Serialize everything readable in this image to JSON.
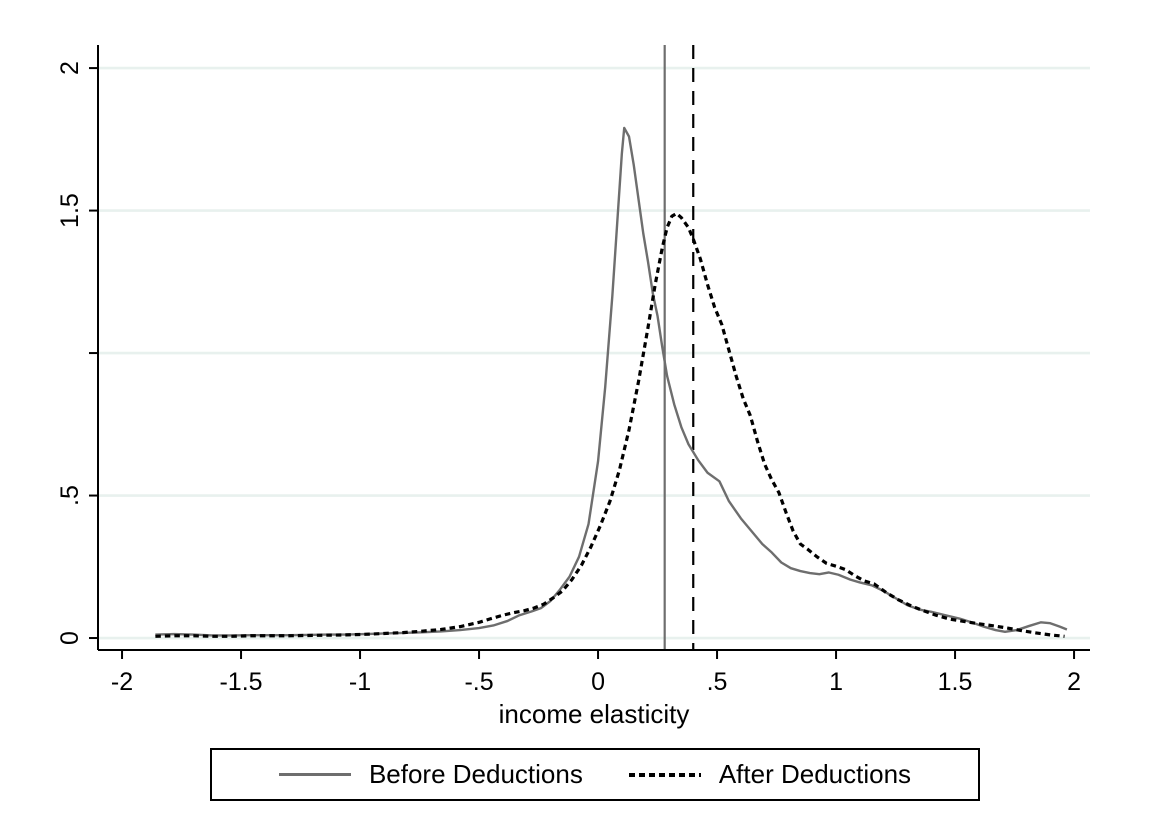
{
  "colors": {
    "background": "#ffffff",
    "axis": "#000000",
    "grid": "#e8f1ee",
    "before_line": "#6e6e6e",
    "after_line": "#000000"
  },
  "chart_data": {
    "type": "line",
    "title": "",
    "xlabel": "income elasticity",
    "ylabel": "",
    "xlim": [
      -2.101,
      2.067
    ],
    "ylim": [
      -0.042,
      2.081
    ],
    "grid": true,
    "grid_color": "#e8f1ee",
    "legend_position": "bottom",
    "x_ticks": [
      {
        "value": -2,
        "label": "-2"
      },
      {
        "value": -1.5,
        "label": "-1.5"
      },
      {
        "value": -1,
        "label": "-1"
      },
      {
        "value": -0.5,
        "label": "-.5"
      },
      {
        "value": 0,
        "label": "0"
      },
      {
        "value": 0.5,
        "label": ".5"
      },
      {
        "value": 1,
        "label": "1"
      },
      {
        "value": 1.5,
        "label": "1.5"
      },
      {
        "value": 2,
        "label": "2"
      }
    ],
    "y_ticks": [
      {
        "value": 0,
        "label": "0"
      },
      {
        "value": 0.5,
        "label": ".5"
      },
      {
        "value": 1,
        "label": ""
      },
      {
        "value": 1.5,
        "label": "1.5"
      },
      {
        "value": 2,
        "label": "2"
      }
    ],
    "reference_lines": [
      {
        "axis": "x",
        "value": 0.28,
        "style": "solid",
        "color": "#6e6e6e",
        "width": 2.2
      },
      {
        "axis": "x",
        "value": 0.4,
        "style": "dashed",
        "color": "#000000",
        "width": 2.2
      }
    ],
    "series": [
      {
        "name": "Before Deductions",
        "style": "solid",
        "color": "#6e6e6e",
        "width": 2.4,
        "points": [
          [
            -1.86,
            0.012
          ],
          [
            -1.78,
            0.014
          ],
          [
            -1.7,
            0.012
          ],
          [
            -1.62,
            0.009
          ],
          [
            -1.54,
            0.009
          ],
          [
            -1.46,
            0.01
          ],
          [
            -1.38,
            0.01
          ],
          [
            -1.3,
            0.01
          ],
          [
            -1.22,
            0.011
          ],
          [
            -1.14,
            0.012
          ],
          [
            -1.06,
            0.012
          ],
          [
            -0.98,
            0.014
          ],
          [
            -0.9,
            0.016
          ],
          [
            -0.82,
            0.018
          ],
          [
            -0.74,
            0.02
          ],
          [
            -0.66,
            0.023
          ],
          [
            -0.58,
            0.028
          ],
          [
            -0.5,
            0.035
          ],
          [
            -0.44,
            0.044
          ],
          [
            -0.38,
            0.06
          ],
          [
            -0.33,
            0.08
          ],
          [
            -0.28,
            0.093
          ],
          [
            -0.24,
            0.105
          ],
          [
            -0.2,
            0.13
          ],
          [
            -0.16,
            0.17
          ],
          [
            -0.12,
            0.215
          ],
          [
            -0.08,
            0.285
          ],
          [
            -0.04,
            0.4
          ],
          [
            0.0,
            0.62
          ],
          [
            0.03,
            0.88
          ],
          [
            0.06,
            1.2
          ],
          [
            0.08,
            1.45
          ],
          [
            0.1,
            1.7
          ],
          [
            0.11,
            1.79
          ],
          [
            0.13,
            1.76
          ],
          [
            0.15,
            1.66
          ],
          [
            0.17,
            1.54
          ],
          [
            0.19,
            1.42
          ],
          [
            0.21,
            1.32
          ],
          [
            0.23,
            1.21
          ],
          [
            0.25,
            1.13
          ],
          [
            0.27,
            1.02
          ],
          [
            0.29,
            0.92
          ],
          [
            0.32,
            0.82
          ],
          [
            0.35,
            0.74
          ],
          [
            0.38,
            0.68
          ],
          [
            0.42,
            0.625
          ],
          [
            0.46,
            0.58
          ],
          [
            0.51,
            0.55
          ],
          [
            0.55,
            0.48
          ],
          [
            0.6,
            0.42
          ],
          [
            0.64,
            0.38
          ],
          [
            0.69,
            0.33
          ],
          [
            0.73,
            0.3
          ],
          [
            0.77,
            0.265
          ],
          [
            0.81,
            0.245
          ],
          [
            0.85,
            0.235
          ],
          [
            0.89,
            0.228
          ],
          [
            0.93,
            0.224
          ],
          [
            0.97,
            0.23
          ],
          [
            1.01,
            0.222
          ],
          [
            1.06,
            0.205
          ],
          [
            1.1,
            0.195
          ],
          [
            1.15,
            0.185
          ],
          [
            1.2,
            0.165
          ],
          [
            1.25,
            0.14
          ],
          [
            1.3,
            0.115
          ],
          [
            1.35,
            0.1
          ],
          [
            1.4,
            0.092
          ],
          [
            1.46,
            0.08
          ],
          [
            1.52,
            0.068
          ],
          [
            1.57,
            0.055
          ],
          [
            1.62,
            0.04
          ],
          [
            1.67,
            0.028
          ],
          [
            1.71,
            0.022
          ],
          [
            1.76,
            0.028
          ],
          [
            1.81,
            0.042
          ],
          [
            1.86,
            0.055
          ],
          [
            1.9,
            0.052
          ],
          [
            1.94,
            0.04
          ],
          [
            1.97,
            0.03
          ]
        ]
      },
      {
        "name": "After Deductions",
        "style": "dotted",
        "color": "#000000",
        "width": 3.2,
        "points": [
          [
            -1.86,
            0.006
          ],
          [
            -1.78,
            0.008
          ],
          [
            -1.7,
            0.008
          ],
          [
            -1.62,
            0.006
          ],
          [
            -1.54,
            0.006
          ],
          [
            -1.46,
            0.008
          ],
          [
            -1.38,
            0.008
          ],
          [
            -1.3,
            0.008
          ],
          [
            -1.22,
            0.009
          ],
          [
            -1.14,
            0.01
          ],
          [
            -1.06,
            0.011
          ],
          [
            -0.98,
            0.013
          ],
          [
            -0.9,
            0.016
          ],
          [
            -0.82,
            0.019
          ],
          [
            -0.74,
            0.024
          ],
          [
            -0.66,
            0.03
          ],
          [
            -0.58,
            0.04
          ],
          [
            -0.5,
            0.055
          ],
          [
            -0.45,
            0.068
          ],
          [
            -0.4,
            0.08
          ],
          [
            -0.36,
            0.088
          ],
          [
            -0.31,
            0.096
          ],
          [
            -0.27,
            0.105
          ],
          [
            -0.23,
            0.118
          ],
          [
            -0.19,
            0.14
          ],
          [
            -0.15,
            0.165
          ],
          [
            -0.11,
            0.205
          ],
          [
            -0.07,
            0.255
          ],
          [
            -0.03,
            0.32
          ],
          [
            0.01,
            0.395
          ],
          [
            0.05,
            0.48
          ],
          [
            0.09,
            0.59
          ],
          [
            0.13,
            0.73
          ],
          [
            0.17,
            0.9
          ],
          [
            0.21,
            1.09
          ],
          [
            0.24,
            1.24
          ],
          [
            0.27,
            1.37
          ],
          [
            0.29,
            1.44
          ],
          [
            0.31,
            1.48
          ],
          [
            0.33,
            1.49
          ],
          [
            0.35,
            1.475
          ],
          [
            0.38,
            1.44
          ],
          [
            0.4,
            1.4
          ],
          [
            0.43,
            1.33
          ],
          [
            0.46,
            1.24
          ],
          [
            0.49,
            1.16
          ],
          [
            0.52,
            1.1
          ],
          [
            0.55,
            1.01
          ],
          [
            0.58,
            0.92
          ],
          [
            0.61,
            0.84
          ],
          [
            0.64,
            0.78
          ],
          [
            0.67,
            0.69
          ],
          [
            0.7,
            0.61
          ],
          [
            0.73,
            0.555
          ],
          [
            0.76,
            0.51
          ],
          [
            0.79,
            0.44
          ],
          [
            0.82,
            0.375
          ],
          [
            0.85,
            0.33
          ],
          [
            0.88,
            0.312
          ],
          [
            0.92,
            0.285
          ],
          [
            0.96,
            0.262
          ],
          [
            1.0,
            0.252
          ],
          [
            1.04,
            0.24
          ],
          [
            1.08,
            0.218
          ],
          [
            1.12,
            0.2
          ],
          [
            1.16,
            0.19
          ],
          [
            1.21,
            0.16
          ],
          [
            1.26,
            0.135
          ],
          [
            1.31,
            0.115
          ],
          [
            1.36,
            0.098
          ],
          [
            1.42,
            0.08
          ],
          [
            1.48,
            0.066
          ],
          [
            1.54,
            0.058
          ],
          [
            1.6,
            0.05
          ],
          [
            1.66,
            0.043
          ],
          [
            1.72,
            0.035
          ],
          [
            1.78,
            0.026
          ],
          [
            1.84,
            0.018
          ],
          [
            1.9,
            0.011
          ],
          [
            1.96,
            0.006
          ]
        ]
      }
    ]
  },
  "legend": {
    "items": [
      {
        "label": "Before Deductions"
      },
      {
        "label": "After Deductions"
      }
    ]
  }
}
